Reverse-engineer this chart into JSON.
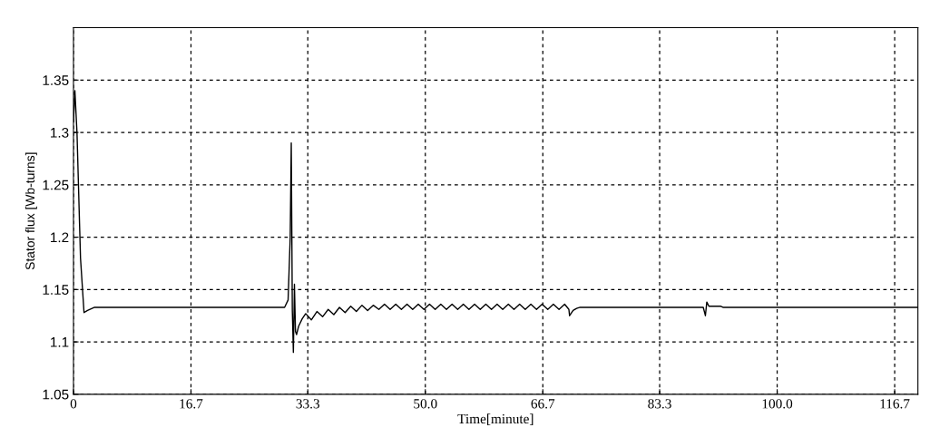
{
  "chart_data": {
    "type": "line",
    "xlabel": "Time[minute]",
    "ylabel": "Stator flux [Wb-turns]",
    "xlim": [
      0,
      120
    ],
    "ylim": [
      1.05,
      1.4
    ],
    "xticks": [
      0,
      16.7,
      33.3,
      {
        "value": 50,
        "label": "50.0"
      },
      66.7,
      83.3,
      {
        "value": 100,
        "label": "100.0"
      },
      116.7
    ],
    "yticks": [
      1.05,
      1.1,
      1.15,
      1.2,
      1.25,
      1.3,
      1.35
    ],
    "grid": true,
    "marker": "none",
    "line_style": "solid",
    "series": [
      {
        "color": "#000000",
        "x": [
          0,
          0.2,
          0.5,
          1.0,
          1.5,
          2.0,
          3.0,
          10,
          20,
          30,
          30.5,
          30.8,
          30.95,
          31.1,
          31.25,
          31.4,
          31.55,
          31.7,
          32.0,
          32.5,
          33.0,
          33.8,
          34.6,
          35.4,
          36.2,
          37.0,
          37.8,
          38.6,
          39.4,
          40.2,
          41.0,
          41.8,
          42.6,
          43.4,
          44.2,
          45.0,
          45.8,
          46.6,
          47.4,
          48.2,
          49.0,
          49.8,
          50.6,
          51.4,
          52.2,
          53.0,
          53.8,
          54.6,
          55.4,
          56.2,
          57.0,
          57.8,
          58.6,
          59.4,
          60.2,
          61.0,
          61.8,
          62.6,
          63.4,
          64.2,
          65.0,
          65.8,
          66.6,
          67.4,
          68.2,
          69.0,
          69.8,
          70.4,
          70.5,
          71.0,
          71.5,
          72.0,
          89.5,
          89.8,
          90.0,
          90.3,
          92.0,
          92.3,
          120
        ],
        "values": [
          1.31,
          1.34,
          1.3,
          1.18,
          1.128,
          1.13,
          1.133,
          1.133,
          1.133,
          1.133,
          1.14,
          1.2,
          1.29,
          1.13,
          1.09,
          1.155,
          1.11,
          1.107,
          1.115,
          1.122,
          1.127,
          1.121,
          1.129,
          1.124,
          1.131,
          1.126,
          1.133,
          1.128,
          1.134,
          1.129,
          1.135,
          1.13,
          1.135,
          1.131,
          1.136,
          1.131,
          1.136,
          1.131,
          1.136,
          1.131,
          1.136,
          1.131,
          1.136,
          1.131,
          1.136,
          1.131,
          1.136,
          1.131,
          1.136,
          1.131,
          1.136,
          1.131,
          1.136,
          1.131,
          1.136,
          1.131,
          1.136,
          1.131,
          1.136,
          1.131,
          1.136,
          1.131,
          1.136,
          1.131,
          1.136,
          1.131,
          1.136,
          1.131,
          1.125,
          1.13,
          1.132,
          1.133,
          1.133,
          1.125,
          1.138,
          1.134,
          1.134,
          1.133,
          1.133
        ]
      }
    ]
  }
}
